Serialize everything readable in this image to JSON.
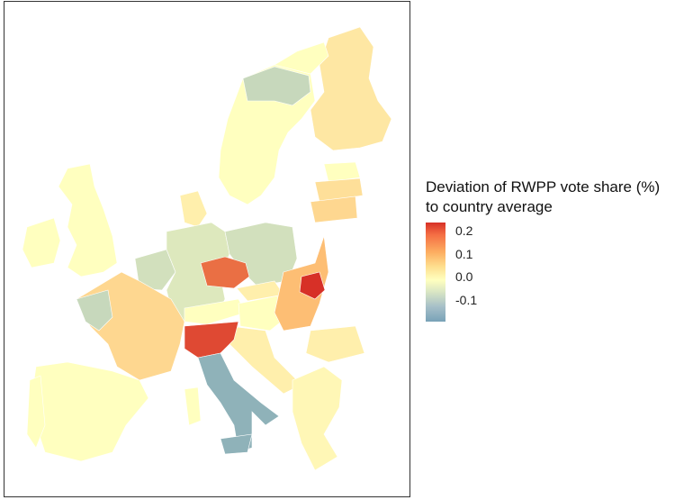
{
  "legend": {
    "title_line1": "Deviation of RWPP vote share (%)",
    "title_line2": "to country average",
    "ticks": [
      "0.2",
      "0.1",
      "0.0",
      "-0.1"
    ],
    "colors": {
      "high": "#d73027",
      "mid_high": "#fdae61",
      "neutral": "#ffffbf",
      "low": "#78a2b8"
    }
  },
  "map": {
    "regions": [
      {
        "name": "finland",
        "level": 0.03
      },
      {
        "name": "sweden",
        "level": 0.0
      },
      {
        "name": "sweden-central",
        "level": -0.05
      },
      {
        "name": "norway-coast",
        "level": 0.0
      },
      {
        "name": "estonia",
        "level": 0.0
      },
      {
        "name": "latvia",
        "level": 0.04
      },
      {
        "name": "lithuania",
        "level": 0.05
      },
      {
        "name": "uk",
        "level": 0.0
      },
      {
        "name": "ireland",
        "level": 0.0
      },
      {
        "name": "denmark",
        "level": 0.02
      },
      {
        "name": "germany",
        "level": -0.03
      },
      {
        "name": "poland",
        "level": -0.04
      },
      {
        "name": "czechia",
        "level": 0.15
      },
      {
        "name": "slovakia",
        "level": 0.02
      },
      {
        "name": "hungary",
        "level": 0.0
      },
      {
        "name": "romania",
        "level": 0.08
      },
      {
        "name": "romania-east",
        "level": 0.2
      },
      {
        "name": "bulgaria",
        "level": 0.02
      },
      {
        "name": "greece",
        "level": 0.01
      },
      {
        "name": "france",
        "level": 0.05
      },
      {
        "name": "france-west",
        "level": -0.05
      },
      {
        "name": "spain",
        "level": 0.0
      },
      {
        "name": "portugal",
        "level": 0.0
      },
      {
        "name": "italy-north",
        "level": 0.18
      },
      {
        "name": "italy-south",
        "level": -0.1
      },
      {
        "name": "sardinia",
        "level": 0.0
      },
      {
        "name": "austria",
        "level": 0.0
      },
      {
        "name": "benelux",
        "level": -0.04
      },
      {
        "name": "croatia",
        "level": 0.02
      }
    ]
  }
}
